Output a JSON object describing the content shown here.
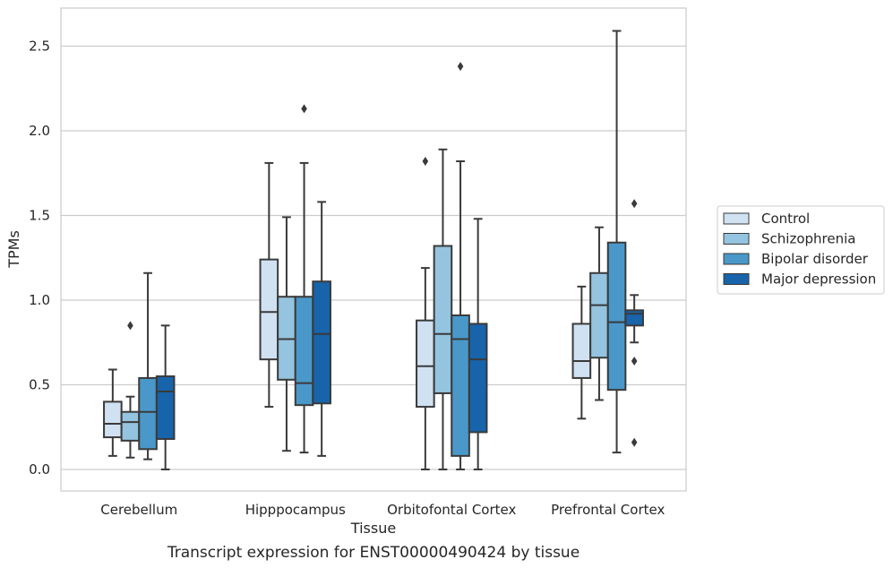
{
  "chart_data": {
    "type": "box",
    "caption": "Transcript expression for ENST00000490424 by tissue",
    "xlabel": "Tissue",
    "ylabel": "TPMs",
    "ylim": [
      -0.12,
      2.7
    ],
    "yticks": [
      0.0,
      0.5,
      1.0,
      1.5,
      2.0,
      2.5
    ],
    "ytick_labels": [
      "0.0",
      "0.5",
      "1.0",
      "1.5",
      "2.0",
      "2.5"
    ],
    "grid": "horizontal",
    "legend_position": "right",
    "categories": [
      "Cerebellum",
      "Hipppocampus",
      "Orbitofontal Cortex",
      "Prefrontal Cortex"
    ],
    "series": [
      {
        "name": "Control",
        "color": "#d0e1f2",
        "boxes": [
          {
            "whislo": 0.08,
            "q1": 0.19,
            "med": 0.27,
            "q3": 0.4,
            "whishi": 0.59,
            "fliers": []
          },
          {
            "whislo": 0.37,
            "q1": 0.65,
            "med": 0.93,
            "q3": 1.24,
            "whishi": 1.81,
            "fliers": []
          },
          {
            "whislo": 0.0,
            "q1": 0.37,
            "med": 0.61,
            "q3": 0.88,
            "whishi": 1.19,
            "fliers": [
              1.82
            ]
          },
          {
            "whislo": 0.3,
            "q1": 0.54,
            "med": 0.64,
            "q3": 0.86,
            "whishi": 1.08,
            "fliers": []
          }
        ]
      },
      {
        "name": "Schizophrenia",
        "color": "#94c4df",
        "boxes": [
          {
            "whislo": 0.07,
            "q1": 0.17,
            "med": 0.28,
            "q3": 0.34,
            "whishi": 0.43,
            "fliers": [
              0.85
            ]
          },
          {
            "whislo": 0.11,
            "q1": 0.53,
            "med": 0.77,
            "q3": 1.02,
            "whishi": 1.49,
            "fliers": []
          },
          {
            "whislo": 0.0,
            "q1": 0.45,
            "med": 0.8,
            "q3": 1.32,
            "whishi": 1.89,
            "fliers": []
          },
          {
            "whislo": 0.41,
            "q1": 0.66,
            "med": 0.97,
            "q3": 1.16,
            "whishi": 1.43,
            "fliers": []
          }
        ]
      },
      {
        "name": "Bipolar disorder",
        "color": "#4a98c9",
        "boxes": [
          {
            "whislo": 0.06,
            "q1": 0.12,
            "med": 0.34,
            "q3": 0.54,
            "whishi": 1.16,
            "fliers": []
          },
          {
            "whislo": 0.1,
            "q1": 0.38,
            "med": 0.51,
            "q3": 1.02,
            "whishi": 1.81,
            "fliers": [
              2.13
            ]
          },
          {
            "whislo": 0.0,
            "q1": 0.08,
            "med": 0.77,
            "q3": 0.91,
            "whishi": 1.82,
            "fliers": [
              2.38
            ]
          },
          {
            "whislo": 0.1,
            "q1": 0.47,
            "med": 0.87,
            "q3": 1.34,
            "whishi": 2.59,
            "fliers": []
          }
        ]
      },
      {
        "name": "Major depression",
        "color": "#1764ab",
        "boxes": [
          {
            "whislo": 0.0,
            "q1": 0.18,
            "med": 0.46,
            "q3": 0.55,
            "whishi": 0.85,
            "fliers": []
          },
          {
            "whislo": 0.08,
            "q1": 0.39,
            "med": 0.8,
            "q3": 1.11,
            "whishi": 1.58,
            "fliers": []
          },
          {
            "whislo": 0.0,
            "q1": 0.22,
            "med": 0.65,
            "q3": 0.86,
            "whishi": 1.48,
            "fliers": []
          },
          {
            "whislo": 0.75,
            "q1": 0.85,
            "med": 0.92,
            "q3": 0.94,
            "whishi": 1.03,
            "fliers": [
              1.57,
              0.64,
              0.16
            ]
          }
        ]
      }
    ]
  }
}
